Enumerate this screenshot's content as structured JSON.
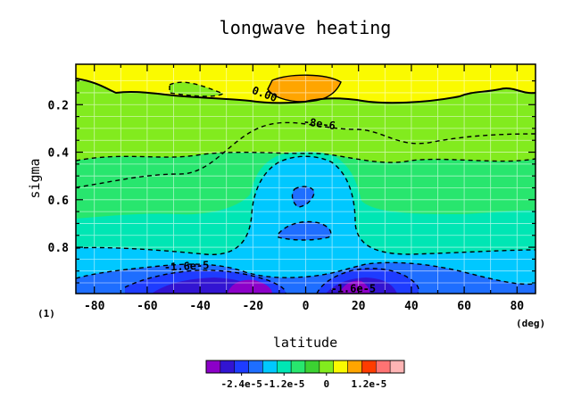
{
  "chart_data": {
    "type": "heatmap",
    "title": "longwave heating",
    "xlabel": "latitude",
    "ylabel": "sigma",
    "x_unit": "(deg)",
    "y_unit": "(1)",
    "xlim": [
      -87,
      87
    ],
    "ylim": [
      0.995,
      0.03
    ],
    "x_ticks": [
      -80,
      -60,
      -40,
      -20,
      0,
      20,
      40,
      60,
      80
    ],
    "y_ticks": [
      0.2,
      0.4,
      0.6,
      0.8
    ],
    "grid": true,
    "contour_labels": [
      {
        "text": "0.00",
        "x": -16,
        "y": 0.17,
        "rotate": 20
      },
      {
        "text": "-8e-6",
        "x": 5,
        "y": 0.295,
        "rotate": 8
      },
      {
        "text": "-1.6e-5",
        "x": -45,
        "y": 0.895,
        "rotate": -3
      },
      {
        "text": "-1.6e-5",
        "x": 18,
        "y": 0.99,
        "rotate": 0
      }
    ],
    "colorbar": {
      "colors": [
        "#8c00c8",
        "#3214d2",
        "#1e3cff",
        "#1e6eff",
        "#00c8ff",
        "#00e6b4",
        "#28e66e",
        "#3cd232",
        "#82eb1e",
        "#fafa00",
        "#ffa500",
        "#ff3c00",
        "#ff7373",
        "#ffb4b4"
      ],
      "tick_labels": [
        "-2.4e-5",
        "-1.2e-5",
        "0",
        "1.2e-5"
      ]
    }
  }
}
